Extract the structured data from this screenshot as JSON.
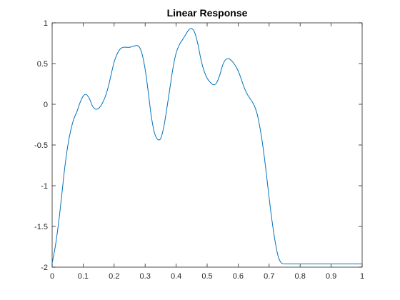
{
  "chart_data": {
    "type": "line",
    "title": "Linear Response",
    "xlabel": "",
    "ylabel": "",
    "xlim": [
      0,
      1
    ],
    "ylim": [
      -2,
      1
    ],
    "grid": false,
    "legend": "none",
    "box": true,
    "colors": {
      "line": "#0072bd",
      "axis": "#262626",
      "background": "#ffffff"
    },
    "x_ticks": [
      {
        "value": 0,
        "label": "0"
      },
      {
        "value": 0.1,
        "label": "0.1"
      },
      {
        "value": 0.2,
        "label": "0.2"
      },
      {
        "value": 0.3,
        "label": "0.3"
      },
      {
        "value": 0.4,
        "label": "0.4"
      },
      {
        "value": 0.5,
        "label": "0.5"
      },
      {
        "value": 0.6,
        "label": "0.6"
      },
      {
        "value": 0.7,
        "label": "0.7"
      },
      {
        "value": 0.8,
        "label": "0.8"
      },
      {
        "value": 0.9,
        "label": "0.9"
      },
      {
        "value": 1,
        "label": "1"
      }
    ],
    "y_ticks": [
      {
        "value": 1,
        "label": "1"
      },
      {
        "value": 0.5,
        "label": "0.5"
      },
      {
        "value": 0,
        "label": "0"
      },
      {
        "value": -0.5,
        "label": "-0.5"
      },
      {
        "value": -1,
        "label": "-1"
      },
      {
        "value": -1.5,
        "label": "-1.5"
      },
      {
        "value": -2,
        "label": "-2"
      }
    ],
    "series": [
      {
        "x": [
          0,
          0.01,
          0.02,
          0.03,
          0.04,
          0.05,
          0.06,
          0.07,
          0.08,
          0.09,
          0.1,
          0.11,
          0.12,
          0.13,
          0.14,
          0.15,
          0.16,
          0.17,
          0.18,
          0.19,
          0.2,
          0.21,
          0.22,
          0.23,
          0.24,
          0.25,
          0.26,
          0.27,
          0.28,
          0.29,
          0.3,
          0.31,
          0.32,
          0.33,
          0.34,
          0.35,
          0.36,
          0.37,
          0.38,
          0.39,
          0.4,
          0.41,
          0.42,
          0.43,
          0.44,
          0.45,
          0.46,
          0.47,
          0.48,
          0.49,
          0.5,
          0.51,
          0.52,
          0.53,
          0.54,
          0.55,
          0.56,
          0.57,
          0.58,
          0.59,
          0.6,
          0.61,
          0.62,
          0.63,
          0.64,
          0.65,
          0.66,
          0.67,
          0.68,
          0.69,
          0.7,
          0.71,
          0.72,
          0.73,
          0.74,
          0.75,
          0.76,
          0.77,
          0.78,
          0.79,
          0.8,
          0.81,
          0.82,
          0.83,
          0.84,
          0.85,
          0.86,
          0.87,
          0.88,
          0.89,
          0.9,
          0.91,
          0.92,
          0.93,
          0.94,
          0.95,
          0.96,
          0.97,
          0.98,
          0.99,
          1.0
        ],
        "y": [
          -1.95,
          -1.75,
          -1.48,
          -1.15,
          -0.8,
          -0.52,
          -0.32,
          -0.18,
          -0.09,
          0.02,
          0.1,
          0.12,
          0.07,
          -0.02,
          -0.06,
          -0.05,
          0.0,
          0.08,
          0.2,
          0.36,
          0.52,
          0.62,
          0.68,
          0.7,
          0.7,
          0.7,
          0.71,
          0.72,
          0.71,
          0.62,
          0.43,
          0.15,
          -0.15,
          -0.35,
          -0.43,
          -0.42,
          -0.28,
          -0.05,
          0.2,
          0.45,
          0.63,
          0.73,
          0.79,
          0.85,
          0.91,
          0.93,
          0.88,
          0.74,
          0.55,
          0.41,
          0.32,
          0.27,
          0.24,
          0.26,
          0.35,
          0.48,
          0.55,
          0.56,
          0.53,
          0.48,
          0.41,
          0.31,
          0.2,
          0.12,
          0.06,
          0.0,
          -0.1,
          -0.28,
          -0.52,
          -0.82,
          -1.15,
          -1.45,
          -1.7,
          -1.88,
          -1.95,
          -1.96,
          -1.96,
          -1.96,
          -1.96,
          -1.96,
          -1.96,
          -1.96,
          -1.96,
          -1.96,
          -1.96,
          -1.96,
          -1.96,
          -1.96,
          -1.96,
          -1.96,
          -1.96,
          -1.96,
          -1.96,
          -1.96,
          -1.96,
          -1.96,
          -1.96,
          -1.96,
          -1.96,
          -1.96,
          -1.96
        ]
      }
    ]
  }
}
